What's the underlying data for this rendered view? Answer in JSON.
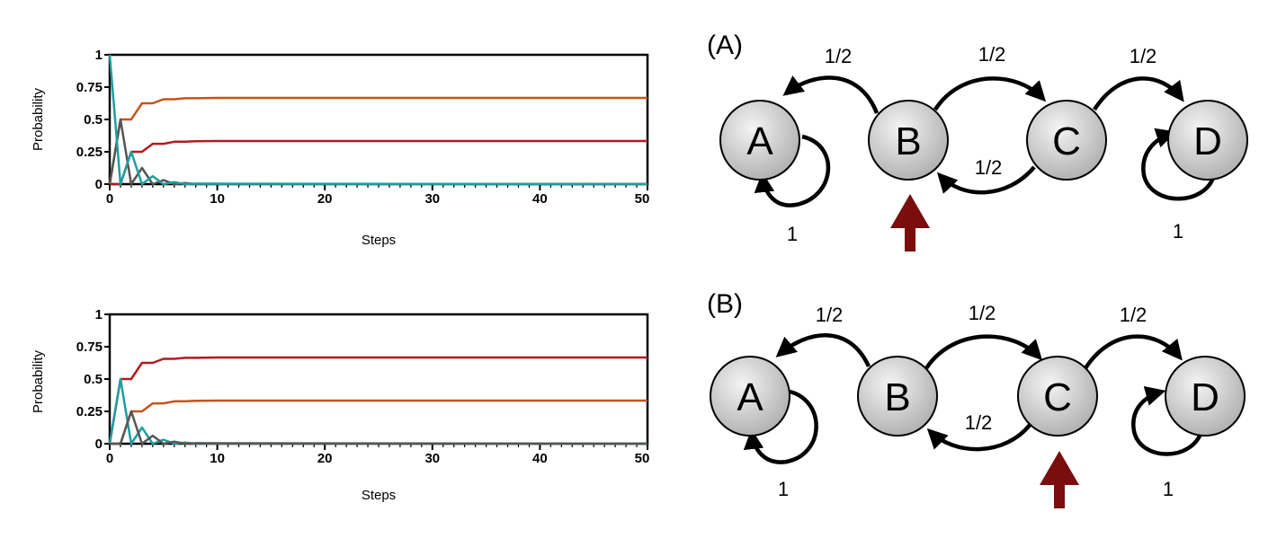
{
  "chart_data": [
    {
      "type": "line",
      "xlabel": "Steps",
      "ylabel": "Probability",
      "xlim": [
        0,
        50
      ],
      "ylim": [
        0,
        1
      ],
      "xticks": [
        "0",
        "10",
        "20",
        "30",
        "40",
        "50"
      ],
      "yticks": [
        "0",
        "0.25",
        "0.5",
        "0.75",
        "1"
      ],
      "grid": false,
      "series": [
        {
          "color": "#c8531a",
          "x": [
            0,
            1,
            2,
            3,
            4,
            5,
            6,
            7,
            8,
            10,
            50
          ],
          "values": [
            0,
            0.5,
            0.5,
            0.625,
            0.625,
            0.656,
            0.656,
            0.664,
            0.664,
            0.667,
            0.667
          ]
        },
        {
          "color": "#b01c1c",
          "x": [
            0,
            1,
            2,
            3,
            4,
            5,
            6,
            7,
            8,
            10,
            50
          ],
          "values": [
            0,
            0,
            0.25,
            0.25,
            0.312,
            0.312,
            0.328,
            0.328,
            0.332,
            0.333,
            0.333
          ]
        },
        {
          "color": "#555555",
          "x": [
            0,
            1,
            2,
            3,
            4,
            5,
            6,
            7,
            8,
            9,
            50
          ],
          "values": [
            0,
            0.5,
            0,
            0.125,
            0,
            0.031,
            0,
            0.008,
            0,
            0.002,
            0
          ]
        },
        {
          "color": "#1f9ea0",
          "x": [
            0,
            1,
            2,
            3,
            4,
            5,
            6,
            7,
            8,
            50
          ],
          "values": [
            1,
            0,
            0.25,
            0,
            0.062,
            0,
            0.016,
            0,
            0.004,
            0
          ]
        }
      ]
    },
    {
      "type": "line",
      "xlabel": "Steps",
      "ylabel": "Probability",
      "xlim": [
        0,
        50
      ],
      "ylim": [
        0,
        1
      ],
      "xticks": [
        "0",
        "10",
        "20",
        "30",
        "40",
        "50"
      ],
      "yticks": [
        "0",
        "0.25",
        "0.5",
        "0.75",
        "1"
      ],
      "grid": false,
      "series": [
        {
          "color": "#b01c1c",
          "x": [
            0,
            1,
            2,
            3,
            4,
            5,
            6,
            7,
            8,
            10,
            50
          ],
          "values": [
            0,
            0.5,
            0.5,
            0.625,
            0.625,
            0.656,
            0.656,
            0.664,
            0.664,
            0.667,
            0.667
          ]
        },
        {
          "color": "#c8531a",
          "x": [
            0,
            1,
            2,
            3,
            4,
            5,
            6,
            7,
            8,
            10,
            50
          ],
          "values": [
            0,
            0,
            0.25,
            0.25,
            0.312,
            0.312,
            0.328,
            0.328,
            0.332,
            0.333,
            0.333
          ]
        },
        {
          "color": "#1f9ea0",
          "x": [
            0,
            1,
            2,
            3,
            4,
            5,
            6,
            7,
            8,
            9,
            50
          ],
          "values": [
            0,
            0.5,
            0,
            0.125,
            0,
            0.031,
            0,
            0.008,
            0,
            0.002,
            0
          ]
        },
        {
          "color": "#555555",
          "x": [
            0,
            1,
            2,
            3,
            4,
            5,
            6,
            7,
            8,
            50
          ],
          "values": [
            0,
            0,
            0.25,
            0,
            0.062,
            0,
            0.016,
            0,
            0.004,
            0
          ]
        }
      ]
    }
  ],
  "diagrams": [
    {
      "panel_label": "(A)",
      "nodes": [
        "A",
        "B",
        "C",
        "D"
      ],
      "edge_labels": {
        "b_to_a": "1/2",
        "b_to_c": "1/2",
        "c_to_d": "1/2",
        "c_to_b": "1/2",
        "a_self": "1",
        "d_self": "1"
      },
      "start_node": "B"
    },
    {
      "panel_label": "(B)",
      "nodes": [
        "A",
        "B",
        "C",
        "D"
      ],
      "edge_labels": {
        "b_to_a": "1/2",
        "b_to_c": "1/2",
        "c_to_d": "1/2",
        "c_to_b": "1/2",
        "a_self": "1",
        "d_self": "1"
      },
      "start_node": "C"
    }
  ],
  "colors": {
    "node_fill_light": "#f2f2f2",
    "node_fill_dark": "#b5b5b5",
    "start_arrow": "#7a0e0e"
  }
}
